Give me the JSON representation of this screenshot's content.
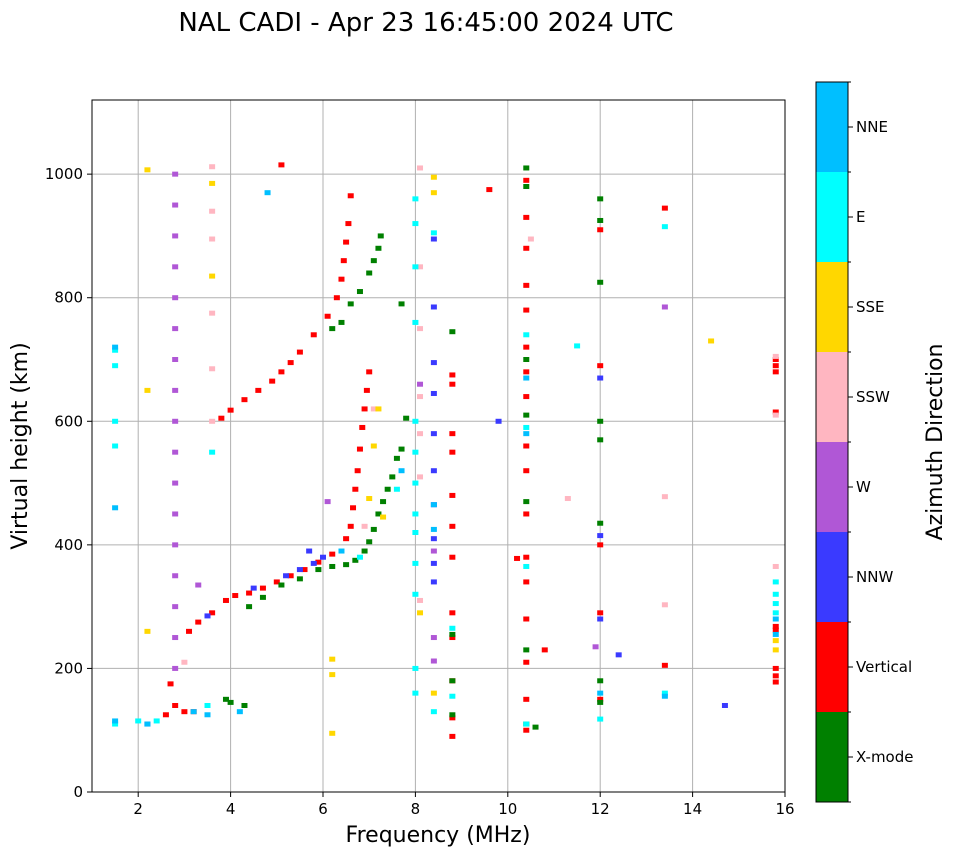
{
  "chart_data": {
    "type": "scatter",
    "title": "NAL CADI - Apr 23 16:45:00 2024 UTC",
    "xlabel": "Frequency (MHz)",
    "ylabel": "Virtual height (km)",
    "xlim": [
      1,
      16
    ],
    "ylim": [
      0,
      1120
    ],
    "xticks": [
      2,
      4,
      6,
      8,
      10,
      12,
      14,
      16
    ],
    "yticks": [
      0,
      200,
      400,
      600,
      800,
      1000
    ],
    "grid": true,
    "colorbar": {
      "title": "Azimuth Direction",
      "categories": [
        {
          "name": "X-mode",
          "color": "#008000"
        },
        {
          "name": "Vertical",
          "color": "#ff0000"
        },
        {
          "name": "NNW",
          "color": "#3a3aff"
        },
        {
          "name": "W",
          "color": "#b057d6"
        },
        {
          "name": "SSW",
          "color": "#ffb6c1"
        },
        {
          "name": "SSE",
          "color": "#ffd700"
        },
        {
          "name": "E",
          "color": "#00ffff"
        },
        {
          "name": "NNE",
          "color": "#00bfff"
        }
      ]
    },
    "series": [
      {
        "name": "Vertical",
        "color": "#ff0000",
        "points": [
          [
            3.1,
            260
          ],
          [
            3.3,
            275
          ],
          [
            3.6,
            290
          ],
          [
            3.9,
            310
          ],
          [
            4.1,
            318
          ],
          [
            4.4,
            322
          ],
          [
            4.7,
            330
          ],
          [
            5.0,
            340
          ],
          [
            5.3,
            350
          ],
          [
            5.6,
            360
          ],
          [
            5.9,
            372
          ],
          [
            6.2,
            385
          ],
          [
            6.5,
            410
          ],
          [
            6.6,
            430
          ],
          [
            6.65,
            460
          ],
          [
            6.7,
            490
          ],
          [
            6.75,
            520
          ],
          [
            6.8,
            555
          ],
          [
            6.85,
            590
          ],
          [
            6.9,
            620
          ],
          [
            6.95,
            650
          ],
          [
            7.0,
            680
          ],
          [
            3.8,
            605
          ],
          [
            4.0,
            618
          ],
          [
            4.3,
            635
          ],
          [
            4.6,
            650
          ],
          [
            4.9,
            665
          ],
          [
            5.1,
            680
          ],
          [
            5.3,
            695
          ],
          [
            5.5,
            712
          ],
          [
            5.8,
            740
          ],
          [
            6.1,
            770
          ],
          [
            6.3,
            800
          ],
          [
            6.4,
            830
          ],
          [
            6.45,
            860
          ],
          [
            6.5,
            890
          ],
          [
            6.55,
            920
          ],
          [
            6.6,
            965
          ],
          [
            8.8,
            90
          ],
          [
            8.8,
            120
          ],
          [
            8.8,
            180
          ],
          [
            8.8,
            250
          ],
          [
            8.8,
            290
          ],
          [
            8.8,
            380
          ],
          [
            8.8,
            430
          ],
          [
            8.8,
            480
          ],
          [
            8.8,
            550
          ],
          [
            8.8,
            580
          ],
          [
            8.8,
            660
          ],
          [
            8.8,
            675
          ],
          [
            10.4,
            100
          ],
          [
            10.4,
            150
          ],
          [
            10.4,
            210
          ],
          [
            10.4,
            280
          ],
          [
            10.4,
            340
          ],
          [
            10.4,
            380
          ],
          [
            10.4,
            450
          ],
          [
            10.4,
            520
          ],
          [
            10.4,
            560
          ],
          [
            10.4,
            640
          ],
          [
            10.4,
            680
          ],
          [
            10.4,
            720
          ],
          [
            10.4,
            780
          ],
          [
            10.4,
            820
          ],
          [
            10.4,
            880
          ],
          [
            10.4,
            930
          ],
          [
            10.4,
            990
          ],
          [
            12.0,
            150
          ],
          [
            12.0,
            290
          ],
          [
            12.0,
            400
          ],
          [
            12.0,
            690
          ],
          [
            12.0,
            910
          ],
          [
            13.4,
            205
          ],
          [
            13.4,
            945
          ],
          [
            15.8,
            178
          ],
          [
            15.8,
            188
          ],
          [
            15.8,
            200
          ],
          [
            15.8,
            262
          ],
          [
            15.8,
            268
          ],
          [
            15.8,
            615
          ],
          [
            15.8,
            680
          ],
          [
            15.8,
            690
          ],
          [
            15.8,
            700
          ],
          [
            2.6,
            125
          ],
          [
            2.8,
            140
          ],
          [
            3.0,
            130
          ],
          [
            3.2,
            130
          ],
          [
            2.7,
            175
          ],
          [
            5.1,
            1015
          ],
          [
            10.2,
            378
          ],
          [
            10.8,
            230
          ],
          [
            9.6,
            975
          ]
        ]
      },
      {
        "name": "X-mode",
        "color": "#008000",
        "points": [
          [
            3.9,
            150
          ],
          [
            4.0,
            145
          ],
          [
            4.3,
            140
          ],
          [
            4.4,
            300
          ],
          [
            4.7,
            315
          ],
          [
            5.1,
            335
          ],
          [
            5.5,
            345
          ],
          [
            5.9,
            360
          ],
          [
            6.2,
            365
          ],
          [
            6.5,
            368
          ],
          [
            6.7,
            375
          ],
          [
            6.9,
            390
          ],
          [
            7.0,
            405
          ],
          [
            7.1,
            425
          ],
          [
            7.2,
            450
          ],
          [
            7.3,
            470
          ],
          [
            7.4,
            490
          ],
          [
            7.5,
            510
          ],
          [
            7.6,
            540
          ],
          [
            7.7,
            555
          ],
          [
            6.6,
            790
          ],
          [
            6.8,
            810
          ],
          [
            7.0,
            840
          ],
          [
            7.1,
            860
          ],
          [
            7.2,
            880
          ],
          [
            7.25,
            900
          ],
          [
            6.4,
            760
          ],
          [
            6.2,
            750
          ],
          [
            8.8,
            125
          ],
          [
            8.8,
            180
          ],
          [
            8.8,
            255
          ],
          [
            8.8,
            745
          ],
          [
            10.4,
            110
          ],
          [
            10.4,
            230
          ],
          [
            10.4,
            470
          ],
          [
            10.4,
            610
          ],
          [
            10.4,
            700
          ],
          [
            10.4,
            980
          ],
          [
            10.4,
            1010
          ],
          [
            12.0,
            145
          ],
          [
            12.0,
            180
          ],
          [
            12.0,
            435
          ],
          [
            12.0,
            570
          ],
          [
            12.0,
            600
          ],
          [
            12.0,
            825
          ],
          [
            12.0,
            925
          ],
          [
            12.0,
            960
          ],
          [
            10.6,
            105
          ],
          [
            7.8,
            605
          ],
          [
            7.7,
            790
          ]
        ]
      },
      {
        "name": "NNW",
        "color": "#3a3aff",
        "points": [
          [
            5.2,
            350
          ],
          [
            5.5,
            360
          ],
          [
            5.8,
            370
          ],
          [
            6.0,
            380
          ],
          [
            5.7,
            390
          ],
          [
            4.5,
            330
          ],
          [
            3.5,
            285
          ],
          [
            8.4,
            340
          ],
          [
            8.4,
            370
          ],
          [
            8.4,
            410
          ],
          [
            8.4,
            465
          ],
          [
            8.4,
            520
          ],
          [
            8.4,
            580
          ],
          [
            8.4,
            645
          ],
          [
            8.4,
            695
          ],
          [
            8.4,
            785
          ],
          [
            8.4,
            895
          ],
          [
            12.0,
            280
          ],
          [
            12.0,
            415
          ],
          [
            12.0,
            670
          ],
          [
            14.7,
            140
          ],
          [
            12.4,
            222
          ],
          [
            9.8,
            600
          ],
          [
            2.2,
            110
          ]
        ]
      },
      {
        "name": "W",
        "color": "#b057d6",
        "points": [
          [
            2.8,
            1000
          ],
          [
            2.8,
            950
          ],
          [
            2.8,
            900
          ],
          [
            2.8,
            850
          ],
          [
            2.8,
            800
          ],
          [
            2.8,
            750
          ],
          [
            2.8,
            700
          ],
          [
            2.8,
            650
          ],
          [
            2.8,
            600
          ],
          [
            2.8,
            550
          ],
          [
            2.8,
            500
          ],
          [
            2.8,
            450
          ],
          [
            2.8,
            400
          ],
          [
            2.8,
            350
          ],
          [
            2.8,
            300
          ],
          [
            2.8,
            250
          ],
          [
            2.8,
            200
          ],
          [
            8.4,
            250
          ],
          [
            8.4,
            212
          ],
          [
            8.4,
            390
          ],
          [
            8.1,
            660
          ],
          [
            13.4,
            785
          ],
          [
            11.9,
            235
          ],
          [
            6.1,
            470
          ],
          [
            3.3,
            335
          ]
        ]
      },
      {
        "name": "SSW",
        "color": "#ffb6c1",
        "points": [
          [
            3.6,
            1012
          ],
          [
            3.6,
            940
          ],
          [
            3.6,
            895
          ],
          [
            3.6,
            775
          ],
          [
            3.6,
            685
          ],
          [
            3.6,
            600
          ],
          [
            8.1,
            1010
          ],
          [
            8.1,
            850
          ],
          [
            8.1,
            750
          ],
          [
            8.1,
            640
          ],
          [
            8.1,
            580
          ],
          [
            8.1,
            510
          ],
          [
            8.1,
            310
          ],
          [
            10.5,
            895
          ],
          [
            13.4,
            478
          ],
          [
            13.4,
            303
          ],
          [
            11.3,
            475
          ],
          [
            15.8,
            365
          ],
          [
            15.8,
            705
          ],
          [
            15.8,
            610
          ],
          [
            3.0,
            210
          ],
          [
            6.9,
            430
          ],
          [
            7.1,
            620
          ]
        ]
      },
      {
        "name": "SSE",
        "color": "#ffd700",
        "points": [
          [
            2.2,
            1007
          ],
          [
            2.2,
            650
          ],
          [
            2.2,
            260
          ],
          [
            3.6,
            985
          ],
          [
            3.6,
            835
          ],
          [
            8.4,
            995
          ],
          [
            8.4,
            970
          ],
          [
            8.4,
            160
          ],
          [
            6.2,
            215
          ],
          [
            6.2,
            190
          ],
          [
            6.2,
            95
          ],
          [
            7.0,
            475
          ],
          [
            7.1,
            560
          ],
          [
            7.2,
            620
          ],
          [
            14.4,
            730
          ],
          [
            15.8,
            230
          ],
          [
            15.8,
            245
          ],
          [
            8.1,
            290
          ],
          [
            7.3,
            445
          ]
        ]
      },
      {
        "name": "E",
        "color": "#00ffff",
        "points": [
          [
            1.5,
            110
          ],
          [
            1.5,
            560
          ],
          [
            1.5,
            600
          ],
          [
            1.5,
            690
          ],
          [
            1.5,
            715
          ],
          [
            2.0,
            115
          ],
          [
            2.4,
            115
          ],
          [
            3.5,
            140
          ],
          [
            3.6,
            550
          ],
          [
            8.0,
            960
          ],
          [
            8.0,
            920
          ],
          [
            8.0,
            850
          ],
          [
            8.0,
            760
          ],
          [
            8.0,
            600
          ],
          [
            8.0,
            550
          ],
          [
            8.0,
            500
          ],
          [
            8.0,
            450
          ],
          [
            8.0,
            420
          ],
          [
            8.0,
            370
          ],
          [
            8.0,
            320
          ],
          [
            8.0,
            200
          ],
          [
            8.0,
            160
          ],
          [
            8.4,
            130
          ],
          [
            8.4,
            905
          ],
          [
            8.8,
            155
          ],
          [
            8.8,
            265
          ],
          [
            10.4,
            110
          ],
          [
            10.4,
            365
          ],
          [
            10.4,
            590
          ],
          [
            10.4,
            740
          ],
          [
            12.0,
            118
          ],
          [
            13.4,
            160
          ],
          [
            13.4,
            915
          ],
          [
            15.8,
            290
          ],
          [
            15.8,
            305
          ],
          [
            15.8,
            320
          ],
          [
            15.8,
            340
          ],
          [
            11.5,
            722
          ],
          [
            6.8,
            380
          ],
          [
            7.6,
            490
          ]
        ]
      },
      {
        "name": "NNE",
        "color": "#00bfff",
        "points": [
          [
            1.5,
            115
          ],
          [
            1.5,
            460
          ],
          [
            1.5,
            720
          ],
          [
            2.2,
            110
          ],
          [
            3.2,
            130
          ],
          [
            3.5,
            125
          ],
          [
            4.2,
            130
          ],
          [
            4.8,
            970
          ],
          [
            6.4,
            390
          ],
          [
            7.7,
            520
          ],
          [
            8.4,
            425
          ],
          [
            8.4,
            465
          ],
          [
            10.4,
            580
          ],
          [
            10.4,
            670
          ],
          [
            12.0,
            160
          ],
          [
            13.4,
            155
          ],
          [
            15.8,
            255
          ],
          [
            15.8,
            280
          ]
        ]
      }
    ]
  }
}
